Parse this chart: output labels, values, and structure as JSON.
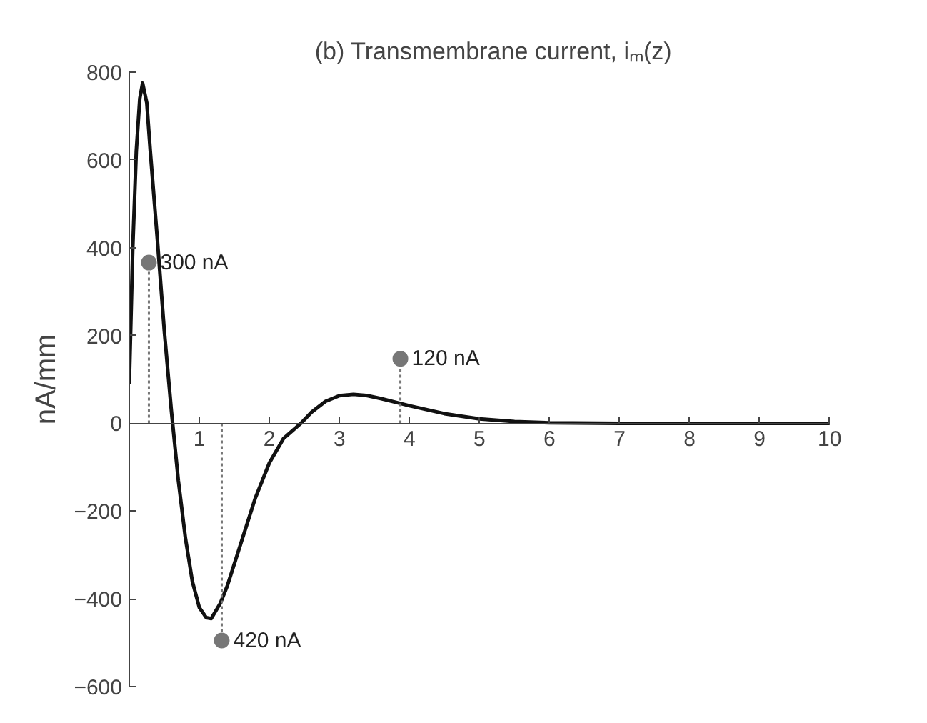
{
  "chart_data": {
    "type": "line",
    "title": "(b) Transmembrane current, iₘ(z)",
    "ylabel": "nA/mm",
    "xlim": [
      0,
      10
    ],
    "xticks": [
      1,
      2,
      3,
      4,
      5,
      6,
      7,
      8,
      9,
      10
    ],
    "ylim": [
      -600,
      800
    ],
    "yticks": [
      -600,
      -400,
      -200,
      0,
      200,
      400,
      600,
      800
    ],
    "grid": false,
    "marker": "none",
    "line_style": "solid",
    "series": [
      {
        "color": "#111111",
        "x": [
          0,
          0.05,
          0.1,
          0.15,
          0.19,
          0.25,
          0.3,
          0.4,
          0.5,
          0.6,
          0.7,
          0.8,
          0.9,
          1.0,
          1.1,
          1.17,
          1.3,
          1.4,
          1.6,
          1.8,
          2.0,
          2.2,
          2.45,
          2.6,
          2.8,
          3.0,
          3.2,
          3.4,
          3.6,
          3.8,
          4.0,
          4.5,
          5.0,
          5.5,
          6.0,
          7,
          8,
          9,
          10
        ],
        "values": [
          90,
          400,
          620,
          740,
          775,
          730,
          620,
          420,
          210,
          30,
          -130,
          -260,
          -360,
          -420,
          -443,
          -445,
          -410,
          -370,
          -270,
          -170,
          -90,
          -35,
          0,
          25,
          50,
          63,
          66,
          63,
          56,
          48,
          40,
          22,
          10,
          4,
          1,
          0,
          0,
          0,
          0
        ]
      },
      {
        "type": "lollipop",
        "color": "#777777",
        "marker": "circle",
        "line_style": "dotted",
        "x": [
          0.28,
          1.32,
          3.87
        ],
        "values": [
          366,
          -495,
          147
        ]
      }
    ],
    "annotations": [
      {
        "text": "300 nA",
        "x": 0.28,
        "y": 366
      },
      {
        "text": "420 nA",
        "x": 1.32,
        "y": -495
      },
      {
        "text": "120 nA",
        "x": 3.87,
        "y": 147
      }
    ]
  }
}
